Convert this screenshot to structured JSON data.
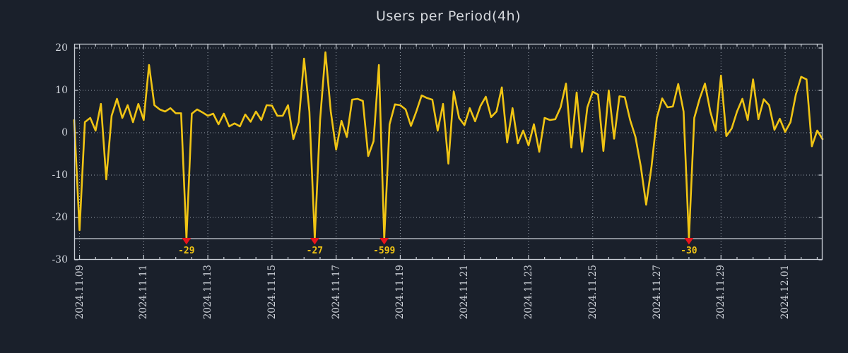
{
  "chart_data": {
    "type": "line",
    "title": "Users per Period(4h)",
    "xlabel": "",
    "ylabel": "",
    "grid": true,
    "legend": null,
    "ylim": [
      -30,
      21
    ],
    "clip_min": -25,
    "y_ticks": [
      20,
      10,
      0,
      -10,
      -20,
      -30
    ],
    "x_tick_labels": [
      "2024.11.09",
      "2024.11.11",
      "2024.11.13",
      "2024.11.15",
      "2024.11.17",
      "2024.11.19",
      "2024.11.21",
      "2024.11.23",
      "2024.11.25",
      "2024.11.27",
      "2024.11.29",
      "2024.12.01"
    ],
    "x_tick_indices": [
      1,
      13,
      25,
      37,
      49,
      61,
      73,
      85,
      97,
      109,
      121,
      133
    ],
    "minor_tick_step": 3,
    "values": [
      3,
      -23,
      2.5,
      3.5,
      0.5,
      6.8,
      -11,
      4,
      8,
      3.5,
      6.5,
      2.5,
      6.8,
      3,
      16,
      6.5,
      5.5,
      5,
      5.8,
      4.6,
      4.6,
      -29,
      4.5,
      5.5,
      4.8,
      4,
      4.5,
      2,
      4.5,
      1.5,
      2.2,
      1.5,
      4.3,
      2.6,
      5,
      3,
      6.5,
      6.4,
      4,
      4,
      6.5,
      -1.5,
      2.5,
      17.5,
      5,
      -27,
      3,
      19,
      5,
      -4,
      2.8,
      -1,
      7.8,
      8,
      7.5,
      -5.5,
      -2,
      16,
      -599,
      2,
      6.7,
      6.5,
      5.5,
      1.6,
      5,
      8.8,
      8.2,
      7.8,
      0.5,
      6.8,
      -7.3,
      9.7,
      3.5,
      1.8,
      5.8,
      2.7,
      6.3,
      8.5,
      3.7,
      5,
      10.7,
      -2.3,
      5.8,
      -2.5,
      0.5,
      -3,
      2,
      -4.5,
      3.5,
      3,
      3.2,
      6,
      11.6,
      -3.5,
      9.5,
      -4.5,
      6,
      9.7,
      9,
      -4.3,
      10,
      -1.4,
      8.6,
      8.4,
      3,
      -1,
      -8,
      -17,
      -8,
      3.5,
      8.1,
      6,
      6.2,
      11.5,
      5,
      -30,
      3.5,
      8,
      11.6,
      5,
      0.5,
      13.5,
      -0.8,
      1,
      5,
      8,
      3,
      12.6,
      3.2,
      7.9,
      6.5,
      0.7,
      3.3,
      0.2,
      2.5,
      9,
      13.2,
      12.6,
      -3.2,
      0.5,
      -1.5
    ],
    "markers": [
      {
        "index": 21,
        "value": -29,
        "label": "-29"
      },
      {
        "index": 45,
        "value": -27,
        "label": "-27"
      },
      {
        "index": 58,
        "value": -599,
        "label": "-599"
      },
      {
        "index": 115,
        "value": -30,
        "label": "-30"
      }
    ]
  },
  "colors": {
    "background": "#1a202b",
    "series": "#f0c414",
    "marker": "#e8141c",
    "grid": "#98a0ab",
    "frame": "#c9ced6",
    "text": "#ced2d9",
    "title_text": "#d6d9de"
  }
}
